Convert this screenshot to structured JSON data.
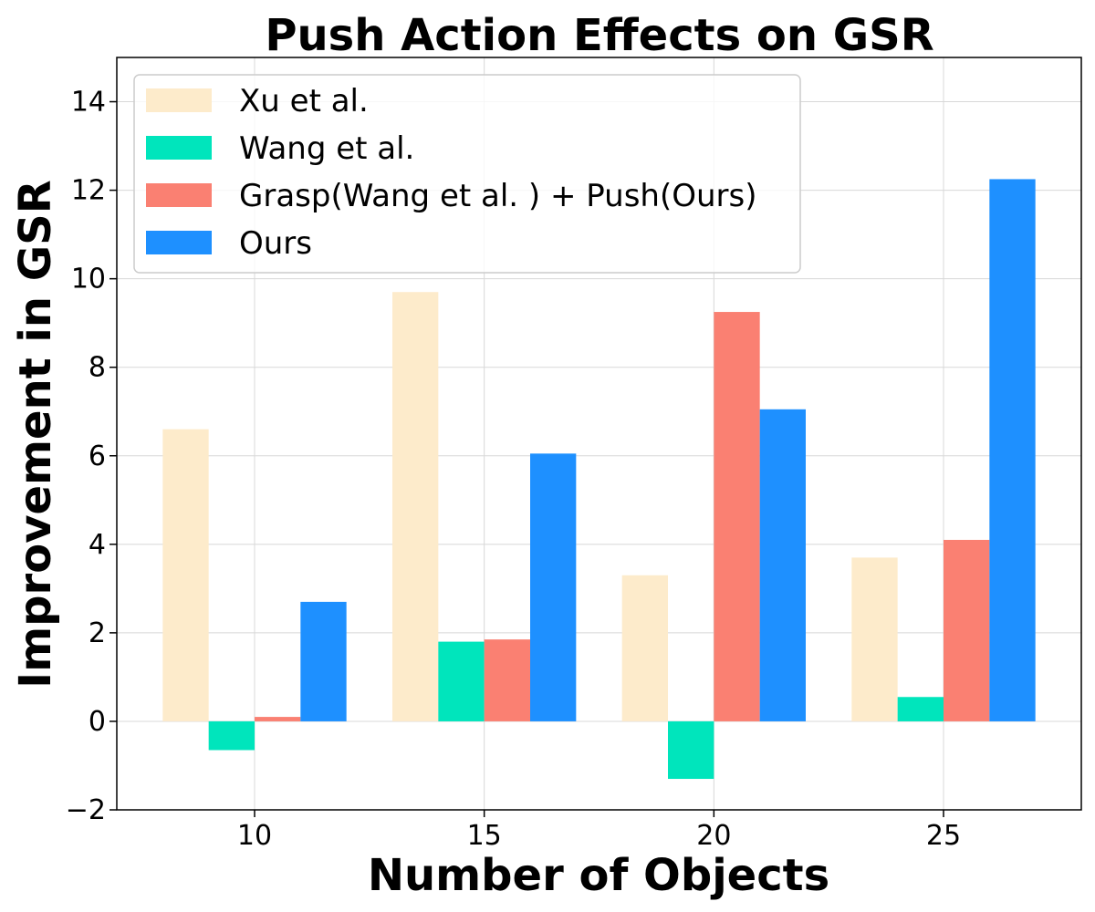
{
  "chart_data": {
    "type": "bar",
    "title": "Push Action Effects on GSR",
    "xlabel": "Number of Objects",
    "ylabel": "Improvement in GSR",
    "categories": [
      "10",
      "15",
      "20",
      "25"
    ],
    "series": [
      {
        "name": "Xu et al.",
        "color": "#FDEBCB",
        "values": [
          6.6,
          9.7,
          3.3,
          3.7
        ]
      },
      {
        "name": "Wang et al.",
        "color": "#00E5BC",
        "values": [
          -0.65,
          1.8,
          -1.3,
          0.55
        ]
      },
      {
        "name": "Grasp(Wang et al. ) + Push(Ours)",
        "color": "#FA8072",
        "values": [
          0.1,
          1.85,
          9.25,
          4.1
        ]
      },
      {
        "name": "Ours",
        "color": "#1E90FF",
        "values": [
          2.7,
          6.05,
          7.05,
          12.25
        ]
      }
    ],
    "x_range": [
      7,
      28
    ],
    "ylim": [
      -2,
      15
    ],
    "yticks": [
      -2,
      0,
      2,
      4,
      6,
      8,
      10,
      12,
      14
    ],
    "ytick_labels": [
      "−2",
      "0",
      "2",
      "4",
      "6",
      "8",
      "10",
      "12",
      "14"
    ],
    "grid": true,
    "legend_position": "top-left"
  }
}
